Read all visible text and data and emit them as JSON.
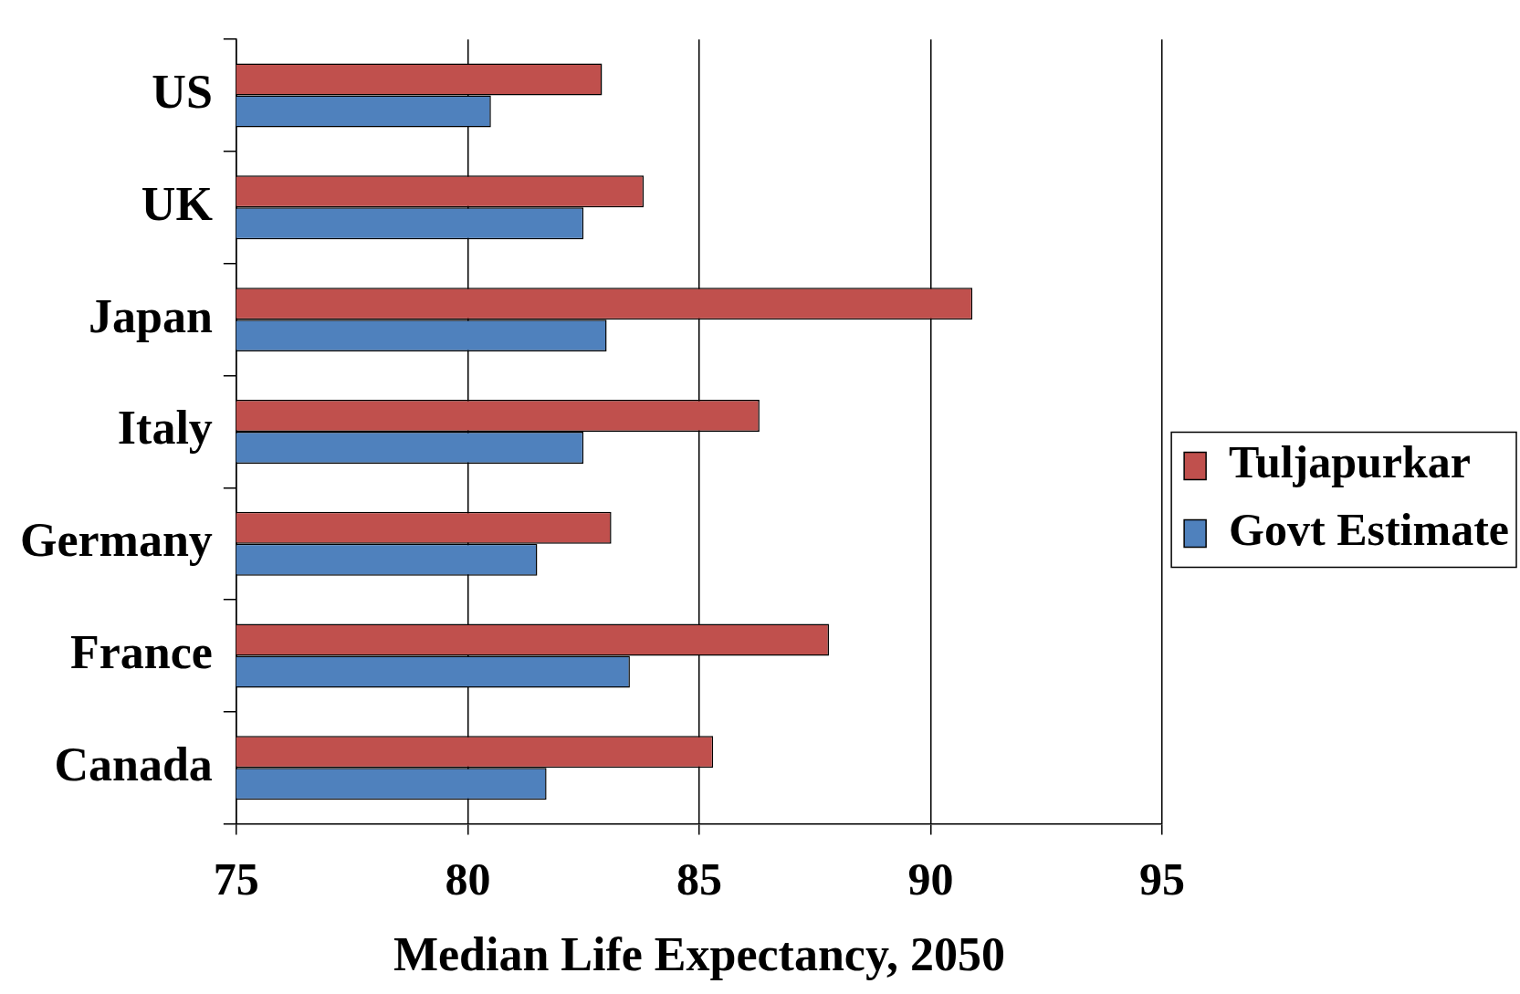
{
  "chart_data": {
    "type": "bar",
    "orientation": "horizontal",
    "xlabel": "Median Life Expectancy, 2050",
    "categories": [
      "US",
      "UK",
      "Japan",
      "Italy",
      "Germany",
      "France",
      "Canada"
    ],
    "series": [
      {
        "name": "Tuljapurkar",
        "color": "#c0504d",
        "values": [
          82.9,
          83.8,
          90.9,
          86.3,
          83.1,
          87.8,
          85.3
        ]
      },
      {
        "name": "Govt Estimate",
        "color": "#4f81bd",
        "values": [
          80.5,
          82.5,
          83.0,
          82.5,
          81.5,
          83.5,
          81.7
        ]
      }
    ],
    "xlim": [
      75,
      95
    ],
    "xticks": [
      75,
      80,
      85,
      90,
      95
    ],
    "grid": "x",
    "legend": "right"
  }
}
